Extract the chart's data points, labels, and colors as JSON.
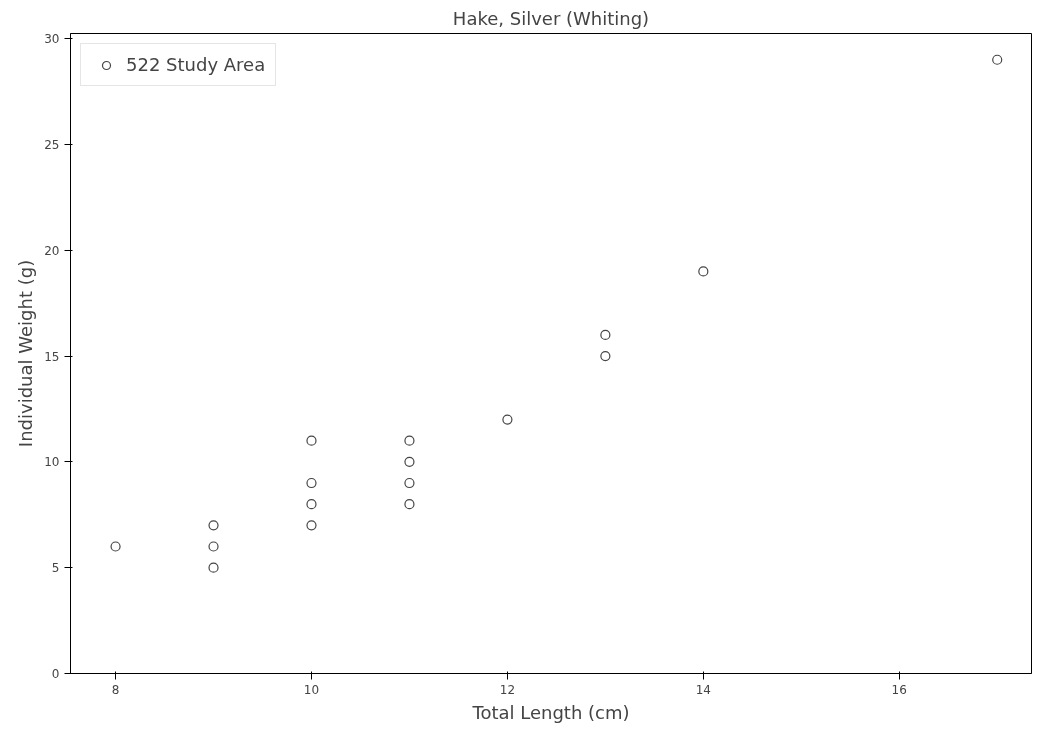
{
  "chart_data": {
    "type": "scatter",
    "title": "Hake, Silver (Whiting)",
    "xlabel": "Total Length (cm)",
    "ylabel": "Individual Weight (g)",
    "x": [
      8,
      9,
      9,
      9,
      10,
      10,
      10,
      10,
      11,
      11,
      11,
      11,
      12,
      13,
      13,
      14,
      17
    ],
    "series": [
      {
        "name": "522 Study Area",
        "color": "#444444",
        "values": [
          6,
          7,
          6,
          5,
          11,
          9,
          8,
          7,
          11,
          10,
          9,
          8,
          12,
          16,
          15,
          19,
          29
        ]
      }
    ],
    "xlim": [
      7.54,
      17.35
    ],
    "ylim": [
      0,
      30.24
    ],
    "xticks": [
      8,
      10,
      12,
      14,
      16
    ],
    "yticks": [
      0,
      5,
      10,
      15,
      20,
      25,
      30
    ],
    "marker": "circle",
    "legend": "top left",
    "grid": false
  }
}
